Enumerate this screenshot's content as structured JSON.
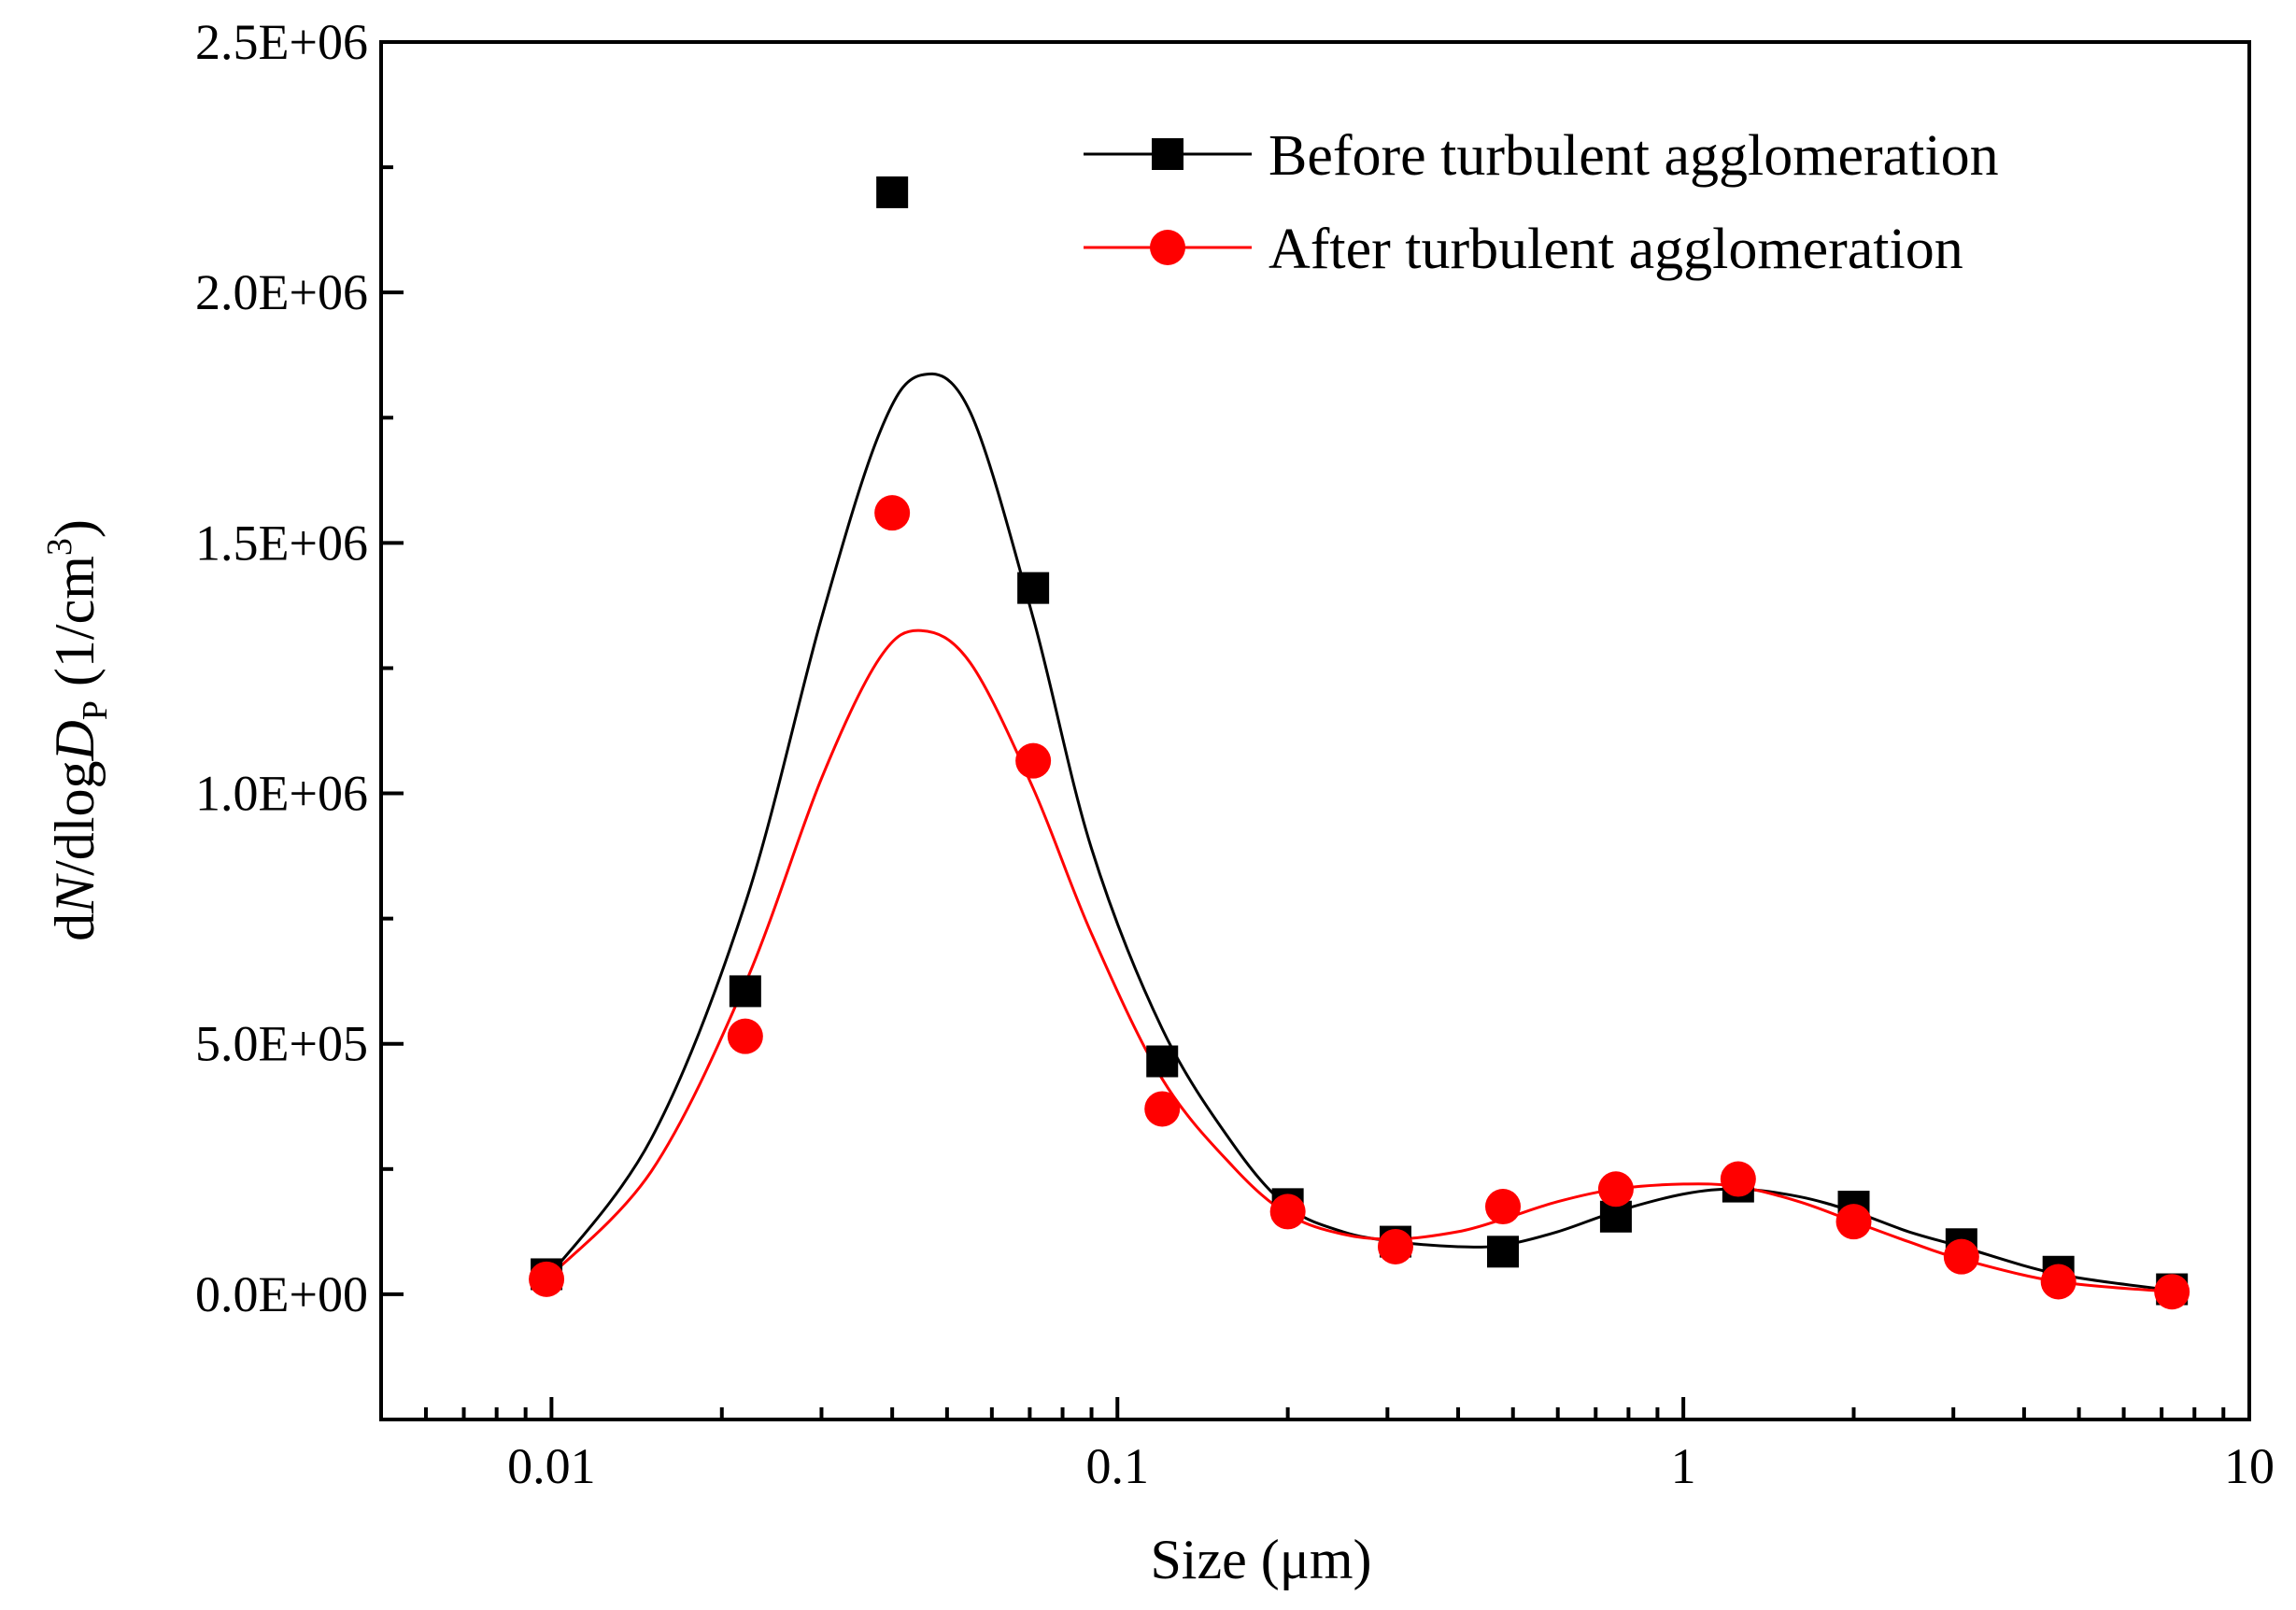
{
  "chart_data": {
    "type": "scatter",
    "title": "",
    "xlabel": "Size (μm)",
    "ylabel": {
      "prefix": "d",
      "italic_n": "N",
      "middle": "/dlog",
      "italic_d": "D",
      "subscript": "P",
      "units_open": " (1/cm",
      "superscript": "3",
      "units_close": ")"
    },
    "xscale": "log",
    "xlim": [
      0.005,
      10
    ],
    "ylim": [
      -250000,
      2500000
    ],
    "x_ticks": [
      {
        "value": 0.01,
        "label": "0.01"
      },
      {
        "value": 0.1,
        "label": "0.1"
      },
      {
        "value": 1,
        "label": "1"
      },
      {
        "value": 10,
        "label": "10"
      }
    ],
    "y_ticks": [
      {
        "value": 0,
        "label": "0.0E+00"
      },
      {
        "value": 500000,
        "label": "5.0E+05"
      },
      {
        "value": 1000000,
        "label": "1.0E+06"
      },
      {
        "value": 1500000,
        "label": "1.5E+06"
      },
      {
        "value": 2000000,
        "label": "2.0E+06"
      },
      {
        "value": 2500000,
        "label": "2.5E+06"
      }
    ],
    "legend_position": "top-right",
    "series": [
      {
        "name": "Before turbulent agglomeration",
        "color": "#000000",
        "marker": "square",
        "x": [
          0.0098,
          0.022,
          0.04,
          0.071,
          0.12,
          0.2,
          0.31,
          0.48,
          0.76,
          1.25,
          2.0,
          3.1,
          4.6,
          7.3
        ],
        "y": [
          40000,
          605000,
          2200000,
          1410000,
          465000,
          180000,
          105000,
          85000,
          155000,
          215000,
          175000,
          100000,
          45000,
          10000
        ],
        "fit": {
          "x": [
            0.0098,
            0.015,
            0.022,
            0.03,
            0.038,
            0.045,
            0.055,
            0.071,
            0.09,
            0.12,
            0.16,
            0.2,
            0.25,
            0.31,
            0.4,
            0.48,
            0.6,
            0.76,
            1.0,
            1.25,
            1.6,
            2.0,
            2.5,
            3.1,
            4.6,
            7.3
          ],
          "y": [
            30000,
            310000,
            780000,
            1350000,
            1720000,
            1835000,
            1760000,
            1350000,
            890000,
            530000,
            300000,
            175000,
            125000,
            105000,
            95000,
            98000,
            125000,
            165000,
            200000,
            210000,
            195000,
            165000,
            125000,
            95000,
            40000,
            8000
          ]
        }
      },
      {
        "name": "After turbulent agglomeration",
        "color": "#ff0000",
        "marker": "circle",
        "x": [
          0.0098,
          0.022,
          0.04,
          0.071,
          0.12,
          0.2,
          0.31,
          0.48,
          0.76,
          1.25,
          2.0,
          3.1,
          4.6,
          7.3
        ],
        "y": [
          30000,
          515000,
          1560000,
          1065000,
          370000,
          165000,
          95000,
          175000,
          210000,
          230000,
          145000,
          75000,
          25000,
          5000
        ],
        "fit": {
          "x": [
            0.0098,
            0.015,
            0.022,
            0.03,
            0.038,
            0.045,
            0.055,
            0.071,
            0.09,
            0.12,
            0.16,
            0.2,
            0.25,
            0.31,
            0.4,
            0.48,
            0.6,
            0.76,
            1.0,
            1.25,
            1.6,
            2.0,
            2.5,
            3.1,
            4.6,
            7.3
          ],
          "y": [
            30000,
            245000,
            620000,
            1030000,
            1270000,
            1325000,
            1260000,
            1010000,
            720000,
            430000,
            255000,
            160000,
            120000,
            110000,
            125000,
            150000,
            185000,
            210000,
            220000,
            215000,
            185000,
            145000,
            105000,
            70000,
            25000,
            5000
          ]
        }
      }
    ]
  }
}
